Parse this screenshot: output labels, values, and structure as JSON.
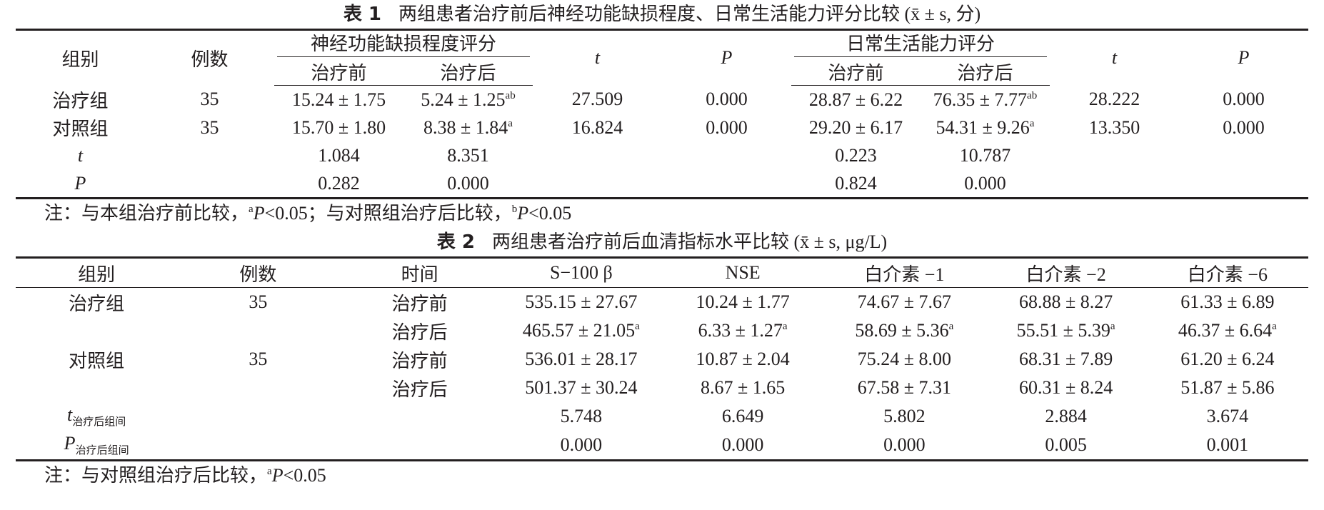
{
  "table1": {
    "label": "表 1",
    "title": "两组患者治疗前后神经功能缺损程度、日常生活能力评分比较 (x̄ ± s, 分)",
    "columns": [
      {
        "text": "组别"
      },
      {
        "text": "例数"
      },
      {
        "group": "神经功能缺损程度评分",
        "sub": [
          "治疗前",
          "治疗后"
        ]
      },
      {
        "text": "t",
        "italic": true
      },
      {
        "text": "P",
        "italic": true
      },
      {
        "group": "日常生活能力评分",
        "sub": [
          "治疗前",
          "治疗后"
        ]
      },
      {
        "text": "t",
        "italic": true
      },
      {
        "text": "P",
        "italic": true
      }
    ],
    "rows": [
      [
        "治疗组",
        "35",
        "15.24 ± 1.75",
        {
          "text": "5.24 ± 1.25",
          "sup": "ab"
        },
        "27.509",
        "0.000",
        "28.87 ± 6.22",
        {
          "text": "76.35 ± 7.77",
          "sup": "ab"
        },
        "28.222",
        "0.000"
      ],
      [
        "对照组",
        "35",
        "15.70 ± 1.80",
        {
          "text": "8.38 ± 1.84",
          "sup": "a"
        },
        "16.824",
        "0.000",
        "29.20 ± 6.17",
        {
          "text": "54.31 ± 9.26",
          "sup": "a"
        },
        "13.350",
        "0.000"
      ],
      [
        {
          "text": "t",
          "italic": true
        },
        null,
        "1.084",
        "8.351",
        null,
        null,
        "0.223",
        "10.787",
        null,
        null
      ],
      [
        {
          "text": "P",
          "italic": true
        },
        null,
        "0.282",
        "0.000",
        null,
        null,
        "0.824",
        "0.000",
        null,
        null
      ]
    ],
    "note": [
      {
        "text": "注：与本组治疗前比较，"
      },
      {
        "text": "a",
        "sup": true
      },
      {
        "text": "P",
        "italic": true
      },
      {
        "text": "<0.05；与对照组治疗后比较，"
      },
      {
        "text": "b",
        "sup": true
      },
      {
        "text": "P",
        "italic": true
      },
      {
        "text": "<0.05"
      }
    ]
  },
  "table2": {
    "label": "表 2",
    "title": "两组患者治疗前后血清指标水平比较 (x̄ ± s, μg/L)",
    "columns": [
      {
        "text": "组别"
      },
      {
        "text": "例数"
      },
      {
        "text": "时间"
      },
      {
        "text": "S−100 β"
      },
      {
        "text": "NSE"
      },
      {
        "text": "白介素 −1"
      },
      {
        "text": "白介素 −2"
      },
      {
        "text": "白介素 −6"
      }
    ],
    "rows": [
      [
        "治疗组",
        "35",
        "治疗前",
        "535.15 ± 27.67",
        "10.24 ± 1.77",
        "74.67 ± 7.67",
        "68.88 ± 8.27",
        "61.33 ± 6.89"
      ],
      [
        null,
        null,
        "治疗后",
        {
          "text": "465.57 ± 21.05",
          "sup": "a"
        },
        {
          "text": "6.33 ± 1.27",
          "sup": "a"
        },
        {
          "text": "58.69 ± 5.36",
          "sup": "a"
        },
        {
          "text": "55.51 ± 5.39",
          "sup": "a"
        },
        {
          "text": "46.37 ± 6.64",
          "sup": "a"
        }
      ],
      [
        "对照组",
        "35",
        "治疗前",
        "536.01 ± 28.17",
        "10.87 ± 2.04",
        "75.24 ± 8.00",
        "68.31 ± 7.89",
        "61.20 ± 6.24"
      ],
      [
        null,
        null,
        "治疗后",
        "501.37 ± 30.24",
        "8.67 ± 1.65",
        "67.58 ± 7.31",
        "60.31 ± 8.24",
        "51.87 ± 5.86"
      ],
      [
        {
          "text": "t",
          "italic": true,
          "sub": "治疗后组间"
        },
        null,
        null,
        "5.748",
        "6.649",
        "5.802",
        "2.884",
        "3.674"
      ],
      [
        {
          "text": "P",
          "italic": true,
          "sub": "治疗后组间"
        },
        null,
        null,
        "0.000",
        "0.000",
        "0.000",
        "0.005",
        "0.001"
      ]
    ],
    "note": [
      {
        "text": "注：与对照组治疗后比较，"
      },
      {
        "text": "a",
        "sup": true
      },
      {
        "text": "P",
        "italic": true
      },
      {
        "text": "<0.05"
      }
    ]
  }
}
